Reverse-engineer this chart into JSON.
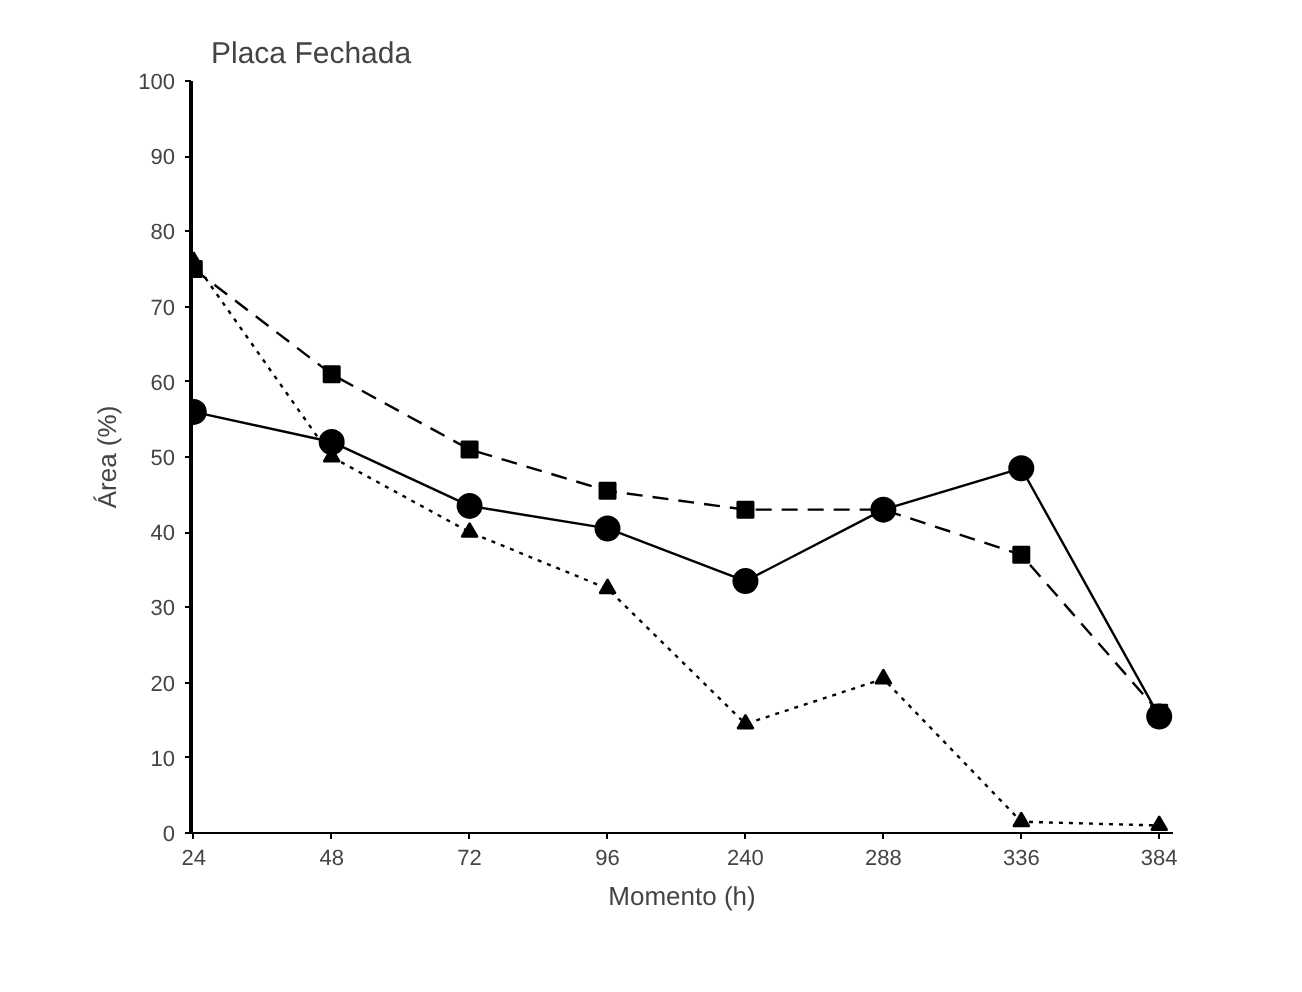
{
  "chart_data": {
    "type": "line",
    "title": "Placa Fechada",
    "xlabel": "Momento (h)",
    "ylabel": "Área (%)",
    "categories": [
      "24",
      "48",
      "72",
      "96",
      "240",
      "288",
      "336",
      "384"
    ],
    "ylim": [
      0,
      100
    ],
    "yticks": [
      0,
      10,
      20,
      30,
      40,
      50,
      60,
      70,
      80,
      90,
      100
    ],
    "grid": false,
    "series": [
      {
        "color": "#000000",
        "marker": "circle",
        "line_style": "solid",
        "values": [
          56,
          52,
          43.5,
          40.5,
          33.5,
          43,
          48.5,
          15.5
        ]
      },
      {
        "color": "#000000",
        "marker": "square",
        "line_style": "dashed",
        "values": [
          75,
          61,
          51,
          45.5,
          43,
          43,
          37,
          16
        ]
      },
      {
        "color": "#000000",
        "marker": "triangle",
        "line_style": "dotted",
        "values": [
          76,
          50,
          40,
          32.5,
          14.5,
          20.5,
          1.5,
          1
        ]
      }
    ]
  }
}
